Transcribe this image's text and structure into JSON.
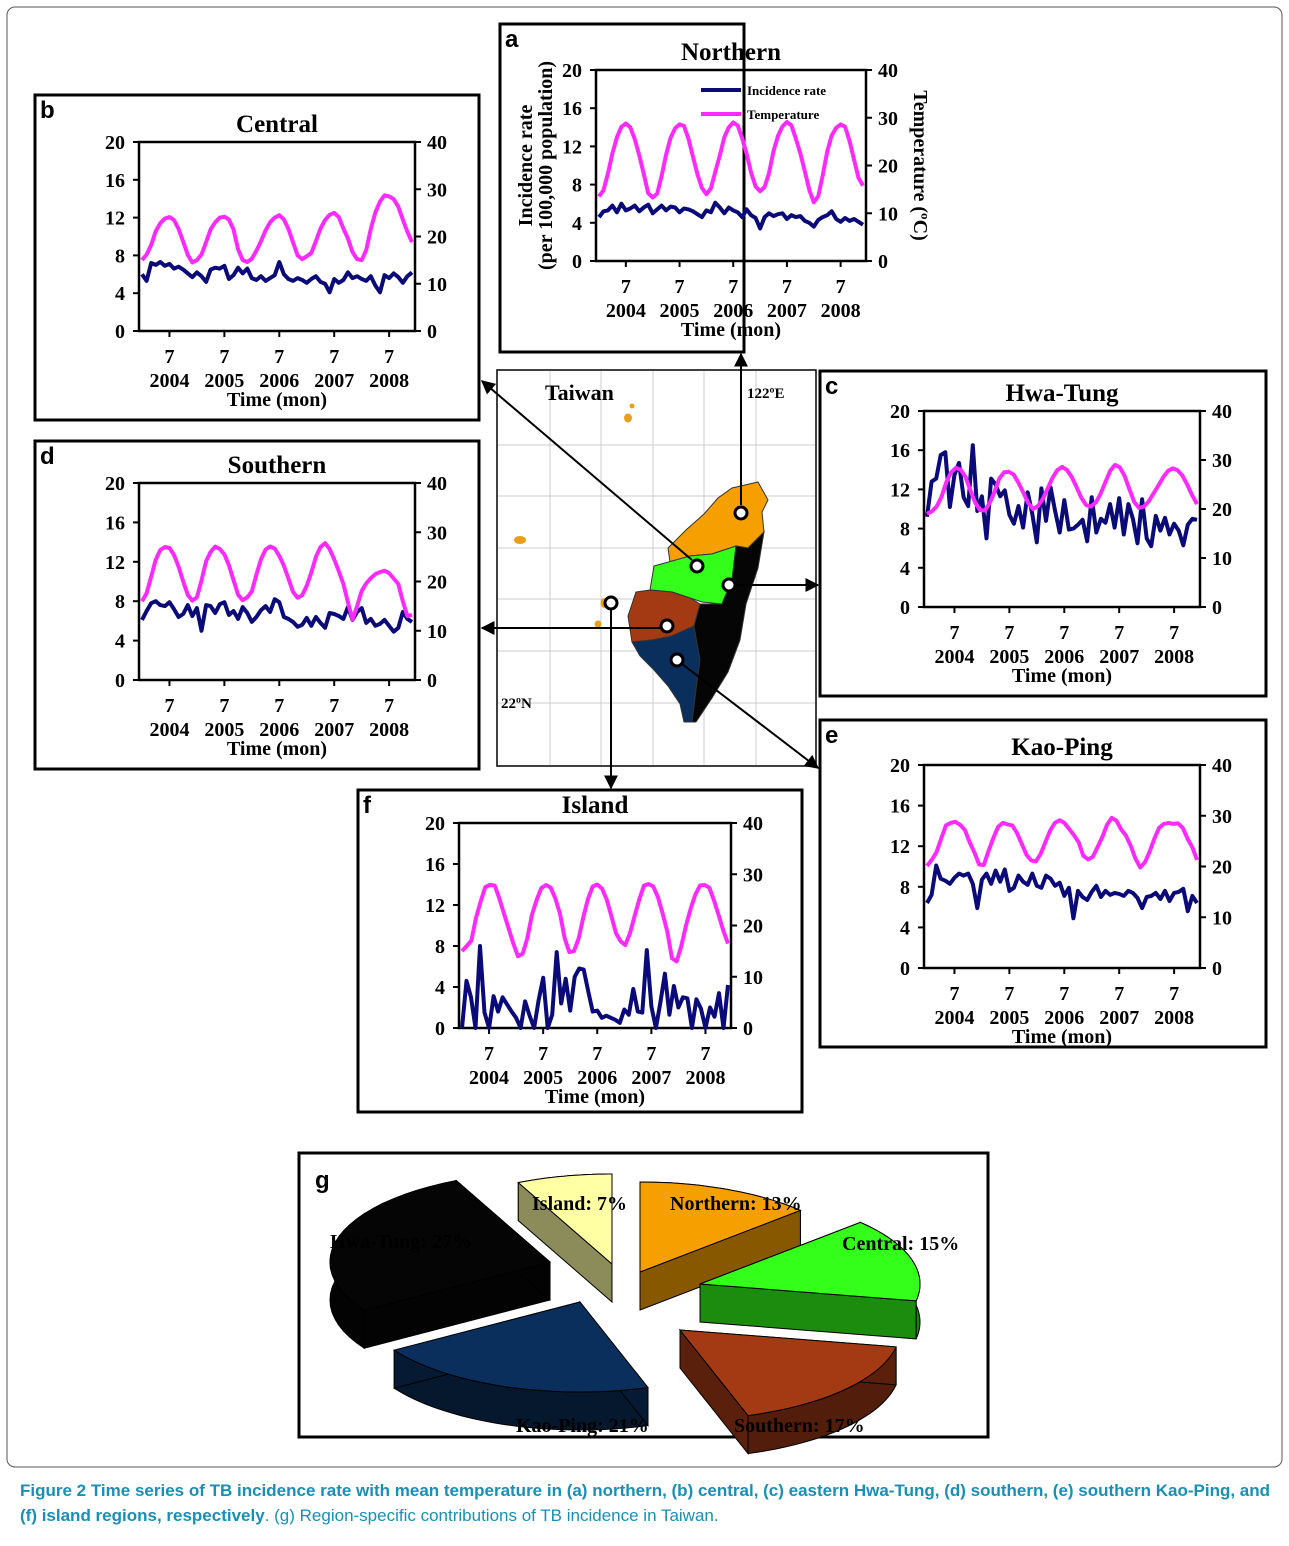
{
  "figure": {
    "caption_label": "Figure 2",
    "caption_bold_text": "Time series of TB incidence rate with mean temperature in (a) northern, (b) central, (c) eastern Hwa-Tung, (d) southern, (e) southern Kao-Ping, and (f) island regions, respectively",
    "caption_rest_text": ". (g) Region-specific contributions of TB incidence in Taiwan."
  },
  "colors": {
    "incidence": "#0a0a78",
    "temperature": "#ff2aff",
    "northern": "#f5a000",
    "central": "#33ff1a",
    "southern": "#a33a14",
    "kaoping": "#0a2f5c",
    "hwatung": "#050505",
    "island": "#ffffa3"
  },
  "map": {
    "title": "Taiwan",
    "lon_label": "122ºE",
    "lat_label": "22ºN"
  },
  "chart_data": [
    {
      "id": "a",
      "panel_label": "a",
      "title": "Northern",
      "type": "line",
      "ylabel": "Incidence rate",
      "ylabel2": "(per 100,000 population)",
      "y2label": "Temperature (ºC)",
      "xlabel": "Time (mon)",
      "ylim": [
        0,
        20
      ],
      "y2lim": [
        0,
        40
      ],
      "yticks": [
        "0",
        "4",
        "8",
        "12",
        "16",
        "20"
      ],
      "y2ticks": [
        "0",
        "10",
        "20",
        "30",
        "40"
      ],
      "xticks": [
        "7",
        "7",
        "7",
        "7",
        "7"
      ],
      "years": [
        "2004",
        "2005",
        "2006",
        "2007",
        "2008"
      ],
      "legend": [
        "Incidence rate",
        "Temperature"
      ],
      "series": [
        {
          "name": "Incidence rate",
          "values": [
            4.6,
            5.2,
            5.3,
            5.8,
            5.1,
            6.0,
            5.3,
            5.5,
            5.8,
            5.2,
            5.6,
            5.9,
            5.0,
            5.4,
            5.8,
            5.3,
            5.7,
            5.6,
            5.1,
            5.5,
            5.4,
            5.2,
            4.9,
            4.6,
            5.3,
            5.1,
            6.1,
            5.6,
            5.0,
            5.6,
            5.3,
            5.1,
            4.6,
            5.4,
            4.8,
            4.5,
            3.4,
            4.6,
            5.0,
            4.7,
            4.9,
            5.0,
            4.4,
            4.8,
            4.6,
            4.7,
            4.2,
            4.0,
            3.6,
            4.3,
            4.6,
            4.8,
            5.2,
            4.4,
            4.1,
            4.5,
            4.2,
            4.4,
            4.1,
            3.8
          ]
        },
        {
          "name": "Temperature",
          "values": [
            13.5,
            14.8,
            18.3,
            22.5,
            25.9,
            28.1,
            28.8,
            28.0,
            25.5,
            22.1,
            18.3,
            14.2,
            13.3,
            14.1,
            17.8,
            22.3,
            25.8,
            27.8,
            28.6,
            28.3,
            25.6,
            21.8,
            18.2,
            15.3,
            14.0,
            15.2,
            18.7,
            22.1,
            25.9,
            28.0,
            29.0,
            28.4,
            25.7,
            22.4,
            18.5,
            15.6,
            14.6,
            15.5,
            18.4,
            23.0,
            26.2,
            28.2,
            29.1,
            28.4,
            25.6,
            22.5,
            18.8,
            14.9,
            12.3,
            13.6,
            17.9,
            22.9,
            26.3,
            27.9,
            28.6,
            28.1,
            25.1,
            21.2,
            17.4,
            15.8
          ]
        }
      ]
    },
    {
      "id": "b",
      "panel_label": "b",
      "title": "Central",
      "type": "line",
      "xlabel": "Time (mon)",
      "ylim": [
        0,
        20
      ],
      "y2lim": [
        0,
        40
      ],
      "yticks": [
        "0",
        "4",
        "8",
        "12",
        "16",
        "20"
      ],
      "y2ticks": [
        "0",
        "10",
        "20",
        "30",
        "40"
      ],
      "xticks": [
        "7",
        "7",
        "7",
        "7",
        "7"
      ],
      "years": [
        "2004",
        "2005",
        "2006",
        "2007",
        "2008"
      ],
      "series": [
        {
          "name": "Incidence rate",
          "values": [
            6.0,
            5.3,
            7.2,
            7.0,
            7.3,
            6.9,
            7.1,
            6.6,
            6.8,
            6.5,
            6.1,
            5.7,
            6.2,
            5.8,
            5.2,
            6.5,
            6.7,
            6.6,
            6.9,
            5.5,
            5.9,
            6.7,
            6.1,
            6.6,
            5.6,
            5.4,
            5.8,
            5.3,
            5.6,
            5.9,
            7.3,
            6.0,
            5.5,
            5.3,
            5.6,
            5.4,
            5.1,
            5.5,
            5.8,
            5.2,
            5.0,
            4.1,
            5.5,
            5.1,
            5.4,
            6.2,
            5.6,
            5.8,
            5.5,
            5.3,
            5.8,
            4.8,
            4.1,
            5.9,
            5.6,
            6.1,
            5.7,
            5.1,
            5.8,
            6.2
          ]
        },
        {
          "name": "Temperature",
          "values": [
            15.0,
            16.2,
            18.2,
            21.1,
            22.8,
            23.8,
            24.1,
            23.5,
            21.6,
            18.9,
            16.1,
            14.5,
            15.0,
            16.2,
            18.8,
            21.5,
            23.0,
            24.0,
            24.2,
            23.6,
            21.5,
            17.3,
            15.0,
            14.6,
            15.3,
            17.0,
            19.0,
            21.3,
            23.0,
            24.0,
            24.5,
            23.6,
            21.6,
            18.8,
            16.0,
            15.2,
            15.8,
            16.5,
            19.0,
            21.7,
            23.5,
            24.6,
            25.0,
            24.1,
            21.7,
            19.6,
            16.7,
            15.2,
            15.0,
            17.1,
            21.6,
            25.1,
            27.4,
            28.7,
            28.5,
            27.9,
            26.3,
            23.6,
            21.0,
            18.8
          ]
        }
      ]
    },
    {
      "id": "c",
      "panel_label": "c",
      "title": "Hwa-Tung",
      "type": "line",
      "xlabel": "Time (mon)",
      "ylim": [
        0,
        20
      ],
      "y2lim": [
        0,
        40
      ],
      "yticks": [
        "0",
        "4",
        "8",
        "12",
        "16",
        "20"
      ],
      "y2ticks": [
        "0",
        "10",
        "20",
        "30",
        "40"
      ],
      "xticks": [
        "7",
        "7",
        "7",
        "7",
        "7"
      ],
      "years": [
        "2004",
        "2005",
        "2006",
        "2007",
        "2008"
      ],
      "series": [
        {
          "name": "Incidence rate",
          "values": [
            9.2,
            12.8,
            13.1,
            15.5,
            15.8,
            10.2,
            13.5,
            14.7,
            11.2,
            10.3,
            16.5,
            9.8,
            11.3,
            7.0,
            13.1,
            12.5,
            11.3,
            11.9,
            9.4,
            8.5,
            10.3,
            8.1,
            11.7,
            9.5,
            6.6,
            12.1,
            8.8,
            12.2,
            9.8,
            7.6,
            10.9,
            7.9,
            8.0,
            8.4,
            8.9,
            6.7,
            11.2,
            7.6,
            9.0,
            8.6,
            10.5,
            8.1,
            11.1,
            7.4,
            10.5,
            9.0,
            6.5,
            11.0,
            7.0,
            6.2,
            9.3,
            7.8,
            9.1,
            7.4,
            8.5,
            7.8,
            6.3,
            8.4,
            9.0,
            8.9
          ]
        },
        {
          "name": "Temperature",
          "values": [
            19.0,
            19.5,
            20.5,
            22.5,
            25.5,
            27.5,
            28.4,
            28.0,
            26.5,
            23.8,
            21.3,
            19.8,
            19.7,
            21.2,
            23.5,
            26.2,
            27.5,
            27.6,
            27.0,
            25.3,
            23.3,
            21.2,
            20.0,
            20.6,
            22.0,
            24.1,
            26.3,
            27.9,
            28.6,
            28.0,
            26.6,
            24.5,
            22.3,
            20.8,
            20.5,
            21.3,
            23.1,
            25.5,
            27.8,
            29.0,
            28.5,
            26.7,
            24.0,
            21.4,
            20.2,
            20.5,
            21.6,
            23.2,
            24.8,
            26.5,
            27.8,
            28.3,
            27.9,
            26.8,
            24.9,
            22.8,
            21.0
          ]
        }
      ]
    },
    {
      "id": "d",
      "panel_label": "d",
      "title": "Southern",
      "type": "line",
      "xlabel": "Time (mon)",
      "ylim": [
        0,
        20
      ],
      "y2lim": [
        0,
        40
      ],
      "yticks": [
        "0",
        "4",
        "8",
        "12",
        "16",
        "20"
      ],
      "y2ticks": [
        "0",
        "10",
        "20",
        "30",
        "40"
      ],
      "xticks": [
        "7",
        "7",
        "7",
        "7",
        "7"
      ],
      "years": [
        "2004",
        "2005",
        "2006",
        "2007",
        "2008"
      ],
      "series": [
        {
          "name": "Incidence rate",
          "values": [
            6.1,
            7.0,
            7.8,
            8.0,
            7.6,
            7.5,
            7.9,
            7.2,
            6.4,
            6.7,
            7.6,
            6.5,
            7.3,
            5.0,
            7.6,
            7.5,
            6.8,
            7.7,
            7.9,
            6.6,
            7.0,
            6.2,
            7.4,
            6.8,
            5.9,
            6.4,
            7.1,
            7.5,
            6.9,
            8.2,
            7.9,
            6.4,
            6.2,
            5.9,
            5.4,
            5.6,
            6.3,
            5.5,
            6.4,
            5.8,
            5.3,
            6.8,
            6.7,
            6.5,
            6.2,
            7.4,
            6.1,
            6.9,
            7.3,
            5.8,
            6.2,
            5.5,
            5.7,
            6.1,
            5.5,
            4.9,
            5.3,
            6.9,
            6.2,
            5.9
          ]
        },
        {
          "name": "Temperature",
          "values": [
            16.0,
            17.6,
            21.0,
            24.4,
            26.4,
            27.0,
            26.8,
            25.4,
            23.0,
            20.0,
            17.3,
            16.1,
            16.8,
            20.2,
            24.1,
            26.0,
            27.1,
            26.6,
            25.5,
            23.3,
            20.3,
            17.3,
            16.2,
            16.8,
            18.0,
            21.4,
            24.5,
            26.5,
            27.1,
            26.7,
            25.2,
            23.2,
            20.6,
            17.9,
            16.7,
            17.2,
            19.1,
            21.8,
            25.0,
            27.0,
            27.8,
            26.6,
            24.5,
            22.1,
            19.5,
            15.8,
            12.3,
            15.0,
            18.1,
            19.6,
            20.7,
            21.5,
            21.9,
            22.2,
            21.7,
            20.6,
            19.5,
            16.0,
            13.0,
            13.2
          ]
        }
      ]
    },
    {
      "id": "e",
      "panel_label": "e",
      "title": "Kao-Ping",
      "type": "line",
      "xlabel": "Time (mon)",
      "ylim": [
        0,
        20
      ],
      "y2lim": [
        0,
        40
      ],
      "yticks": [
        "0",
        "4",
        "8",
        "12",
        "16",
        "20"
      ],
      "y2ticks": [
        "0",
        "10",
        "20",
        "30",
        "40"
      ],
      "xticks": [
        "7",
        "7",
        "7",
        "7",
        "7"
      ],
      "years": [
        "2004",
        "2005",
        "2006",
        "2007",
        "2008"
      ],
      "series": [
        {
          "name": "Incidence rate",
          "values": [
            6.4,
            7.2,
            10.1,
            8.8,
            8.6,
            8.3,
            8.9,
            9.3,
            9.1,
            9.3,
            8.3,
            5.9,
            8.7,
            9.3,
            8.3,
            9.6,
            8.5,
            9.7,
            7.6,
            7.9,
            9.1,
            8.5,
            8.2,
            9.3,
            8.1,
            7.9,
            9.1,
            8.8,
            8.1,
            8.4,
            7.1,
            7.9,
            4.9,
            7.6,
            7.0,
            6.7,
            7.5,
            8.1,
            7.0,
            7.6,
            7.2,
            7.4,
            7.3,
            7.1,
            7.6,
            7.4,
            6.9,
            5.9,
            7.0,
            7.1,
            7.4,
            6.8,
            7.6,
            6.6,
            7.4,
            7.5,
            7.8,
            5.6,
            7.1,
            6.4
          ]
        },
        {
          "name": "Temperature",
          "values": [
            20.1,
            21.3,
            22.8,
            25.5,
            28.1,
            28.6,
            28.8,
            28.2,
            27.2,
            24.8,
            22.8,
            20.4,
            20.3,
            23.1,
            25.6,
            27.8,
            28.6,
            28.3,
            28.1,
            26.6,
            24.5,
            22.3,
            21.2,
            21.0,
            22.5,
            24.8,
            27.1,
            28.6,
            29.1,
            28.6,
            27.4,
            26.2,
            24.8,
            22.1,
            21.4,
            21.9,
            23.8,
            25.8,
            28.2,
            29.6,
            29.0,
            27.3,
            26.1,
            24.1,
            21.6,
            19.8,
            20.8,
            22.9,
            25.5,
            27.6,
            28.4,
            28.6,
            28.4,
            28.5,
            27.6,
            25.5,
            23.8,
            21.3
          ]
        }
      ]
    },
    {
      "id": "f",
      "panel_label": "f",
      "title": "Island",
      "type": "line",
      "xlabel": "Time (mon)",
      "ylim": [
        0,
        20
      ],
      "y2lim": [
        0,
        40
      ],
      "yticks": [
        "0",
        "4",
        "8",
        "12",
        "16",
        "20"
      ],
      "y2ticks": [
        "0",
        "10",
        "20",
        "30",
        "40"
      ],
      "xticks": [
        "7",
        "7",
        "7",
        "7",
        "7"
      ],
      "years": [
        "2004",
        "2005",
        "2006",
        "2007",
        "2008"
      ],
      "series": [
        {
          "name": "Incidence rate",
          "values": [
            0.0,
            4.6,
            3.0,
            0.0,
            8.0,
            1.5,
            0.0,
            3.1,
            1.6,
            3.0,
            2.3,
            1.6,
            1.0,
            0.0,
            2.6,
            1.2,
            0.0,
            2.7,
            4.9,
            0.0,
            1.3,
            7.4,
            2.4,
            4.8,
            1.7,
            5.0,
            5.8,
            5.7,
            3.6,
            1.6,
            1.7,
            1.0,
            1.2,
            1.0,
            0.8,
            0.5,
            1.8,
            1.3,
            3.8,
            1.6,
            1.5,
            7.6,
            2.1,
            0.0,
            2.5,
            5.3,
            1.3,
            4.1,
            2.0,
            3.0,
            2.9,
            0.0,
            2.8,
            1.9,
            0.0,
            2.0,
            1.1,
            3.4,
            0.0,
            4.2
          ]
        },
        {
          "name": "Temperature",
          "values": [
            15.0,
            16.0,
            17.0,
            21.5,
            24.7,
            27.5,
            27.9,
            27.8,
            25.3,
            22.3,
            19.4,
            16.5,
            14.0,
            14.5,
            17.5,
            22.1,
            25.0,
            27.3,
            27.9,
            27.4,
            25.3,
            22.3,
            17.5,
            14.8,
            15.0,
            17.5,
            21.6,
            25.2,
            27.6,
            28.0,
            27.2,
            25.1,
            21.9,
            18.5,
            16.9,
            16.2,
            18.5,
            21.9,
            25.1,
            27.8,
            28.1,
            27.6,
            25.5,
            22.3,
            18.8,
            13.6,
            13.0,
            16.0,
            20.0,
            23.3,
            26.0,
            27.8,
            27.9,
            27.4,
            24.9,
            22.0,
            19.0,
            16.5
          ]
        }
      ]
    },
    {
      "id": "g",
      "panel_label": "g",
      "type": "pie",
      "title": "",
      "categories": [
        "Island",
        "Northern",
        "Central",
        "Southern",
        "Kao-Ping",
        "Hwa-Tung"
      ],
      "values": [
        7,
        13,
        15,
        17,
        21,
        27
      ],
      "labels": [
        "Island: 7%",
        "Northern: 13%",
        "Central: 15%",
        "Southern: 17%",
        "Kao-Ping: 21%",
        "Hwa-Tung: 27%"
      ]
    }
  ]
}
